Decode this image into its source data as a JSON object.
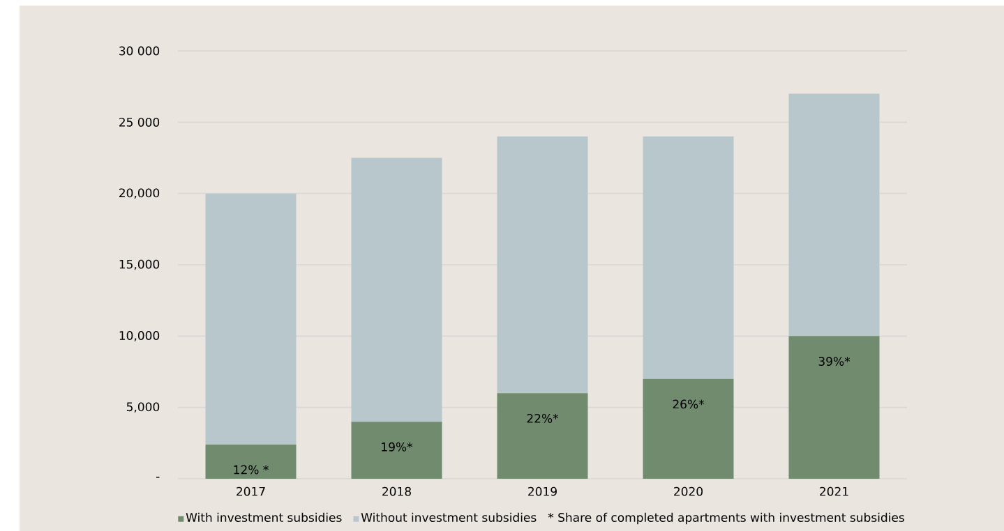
{
  "chart_data": {
    "type": "bar",
    "stacked": true,
    "categories": [
      "2017",
      "2018",
      "2019",
      "2020",
      "2021"
    ],
    "series": [
      {
        "name": "With investment subsidies",
        "color": "#718b6f",
        "values": [
          2400,
          4000,
          6000,
          7000,
          10000
        ]
      },
      {
        "name": "Without investment subsidies",
        "color": "#b8c7cb",
        "values": [
          17600,
          18500,
          18000,
          17000,
          17000
        ]
      }
    ],
    "ylim": [
      0,
      30000
    ],
    "yticks": [
      {
        "value": 0,
        "label": "-"
      },
      {
        "value": 5000,
        "label": "5,000"
      },
      {
        "value": 10000,
        "label": "10,000"
      },
      {
        "value": 15000,
        "label": "15,000"
      },
      {
        "value": 20000,
        "label": "20,000"
      },
      {
        "value": 25000,
        "label": "25 000"
      },
      {
        "value": 30000,
        "label": "30 000"
      }
    ],
    "grid": "y",
    "legend": "bottom",
    "annotations": [
      {
        "text": "12% *",
        "x": "2017",
        "y": 2400
      },
      {
        "text": "19%*",
        "x": "2018",
        "y": 4000
      },
      {
        "text": "22%*",
        "x": "2019",
        "y": 6000
      },
      {
        "text": "26%*",
        "x": "2020",
        "y": 7000
      },
      {
        "text": "39%*",
        "x": "2021",
        "y": 10000
      },
      "* Share of completed apartments with investment subsidies"
    ]
  }
}
